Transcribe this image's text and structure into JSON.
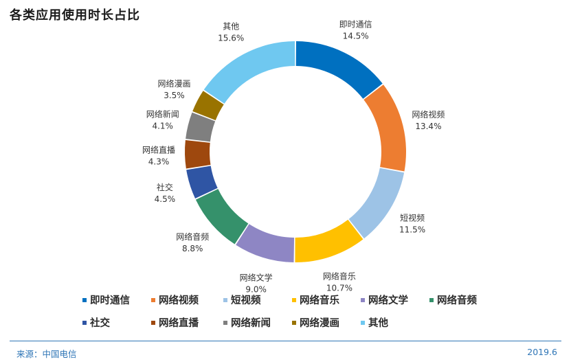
{
  "chart_data": {
    "type": "pie",
    "title": "各类应用使用时长占比",
    "unit": "%",
    "slices": [
      {
        "label": "即时通信",
        "value": 14.5,
        "display": "14.5%",
        "color": "#0070c0"
      },
      {
        "label": "网络视频",
        "value": 13.4,
        "display": "13.4%",
        "color": "#ed7d31"
      },
      {
        "label": "短视频",
        "value": 11.5,
        "display": "11.5%",
        "color": "#9dc3e6"
      },
      {
        "label": "网络音乐",
        "value": 10.7,
        "display": "10.7%",
        "color": "#ffc000"
      },
      {
        "label": "网络文学",
        "value": 9.0,
        "display": "9.0%",
        "color": "#8e86c4"
      },
      {
        "label": "网络音频",
        "value": 8.8,
        "display": "8.8%",
        "color": "#35916b"
      },
      {
        "label": "社交",
        "value": 4.5,
        "display": "4.5%",
        "color": "#2f55a4"
      },
      {
        "label": "网络直播",
        "value": 4.3,
        "display": "4.3%",
        "color": "#9e480e"
      },
      {
        "label": "网络新闻",
        "value": 4.1,
        "display": "4.1%",
        "color": "#7f7f7f"
      },
      {
        "label": "网络漫画",
        "value": 3.5,
        "display": "3.5%",
        "color": "#997300"
      },
      {
        "label": "其他",
        "value": 15.6,
        "display": "15.6%",
        "color": "#6fc8f0"
      }
    ],
    "legend_position": "bottom"
  },
  "footer": {
    "source": "来源：中国电信",
    "date": "2019.6"
  }
}
